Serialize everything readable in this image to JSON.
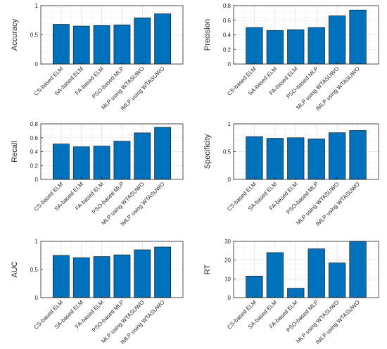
{
  "bar_color": "#0072BD",
  "grid_color": "#e3e3e3",
  "chart_data": [
    {
      "type": "bar",
      "ylabel": "Accuracy",
      "categories": [
        "CS-based ELM",
        "SA-based ELM",
        "FA-based ELM",
        "PSO-based MLP",
        "MLP using WTASUWO",
        "IMLP using WTASUWO"
      ],
      "values": [
        0.68,
        0.65,
        0.66,
        0.67,
        0.79,
        0.86
      ],
      "ylim": [
        0,
        1
      ],
      "yticks": [
        0,
        0.5,
        1
      ],
      "ytick_labels": [
        "0",
        "0.5",
        "1"
      ],
      "grid": true
    },
    {
      "type": "bar",
      "ylabel": "Precision",
      "categories": [
        "CS-based ELM",
        "SA-based ELM",
        "FA-based ELM",
        "PSO-based MLP",
        "MLP using WTASUWO",
        "IMLP using WTASUWO"
      ],
      "values": [
        0.5,
        0.46,
        0.47,
        0.5,
        0.66,
        0.74
      ],
      "ylim": [
        0,
        0.8
      ],
      "yticks": [
        0,
        0.2,
        0.4,
        0.6,
        0.8
      ],
      "ytick_labels": [
        "0",
        "0.2",
        "0.4",
        "0.6",
        "0.8"
      ],
      "grid": true
    },
    {
      "type": "bar",
      "ylabel": "Recall",
      "categories": [
        "CS-based ELM",
        "SA-based ELM",
        "FA-based ELM",
        "PSO-based MLP",
        "MLP using WTASUWO",
        "IMLP using WTASUWO"
      ],
      "values": [
        0.51,
        0.47,
        0.48,
        0.55,
        0.67,
        0.75
      ],
      "ylim": [
        0,
        0.8
      ],
      "yticks": [
        0,
        0.2,
        0.4,
        0.6,
        0.8
      ],
      "ytick_labels": [
        "0",
        "0.2",
        "0.4",
        "0.6",
        "0.8"
      ],
      "grid": true
    },
    {
      "type": "bar",
      "ylabel": "Specificity",
      "categories": [
        "CS-based ELM",
        "SA-based ELM",
        "FA-based ELM",
        "PSO-based MLP",
        "MLP using WTASUWO",
        "IMLP using WTASUWO"
      ],
      "values": [
        0.77,
        0.74,
        0.75,
        0.73,
        0.84,
        0.88
      ],
      "ylim": [
        0,
        1
      ],
      "yticks": [
        0,
        0.5,
        1
      ],
      "ytick_labels": [
        "0",
        "0.5",
        "1"
      ],
      "grid": true
    },
    {
      "type": "bar",
      "ylabel": "AUC",
      "categories": [
        "CS-based ELM",
        "SA-based ELM",
        "FA-based ELM",
        "PSO-based MLP",
        "MLP using WTASUWO",
        "IMLP using WTASUWO"
      ],
      "values": [
        0.75,
        0.71,
        0.73,
        0.76,
        0.85,
        0.9
      ],
      "ylim": [
        0,
        1
      ],
      "yticks": [
        0,
        0.5,
        1
      ],
      "ytick_labels": [
        "0",
        "0.5",
        "1"
      ],
      "grid": true
    },
    {
      "type": "bar",
      "ylabel": "RT",
      "categories": [
        "CS-based ELM",
        "SA-based ELM",
        "FA-based ELM",
        "PSO-based MLP",
        "MLP using WTASUWO",
        "IMLP using WTASUWO"
      ],
      "values": [
        11.5,
        24,
        5,
        26,
        18.5,
        30
      ],
      "ylim": [
        0,
        30
      ],
      "yticks": [
        0,
        10,
        20,
        30
      ],
      "ytick_labels": [
        "0",
        "10",
        "20",
        "30"
      ],
      "grid": true
    }
  ]
}
